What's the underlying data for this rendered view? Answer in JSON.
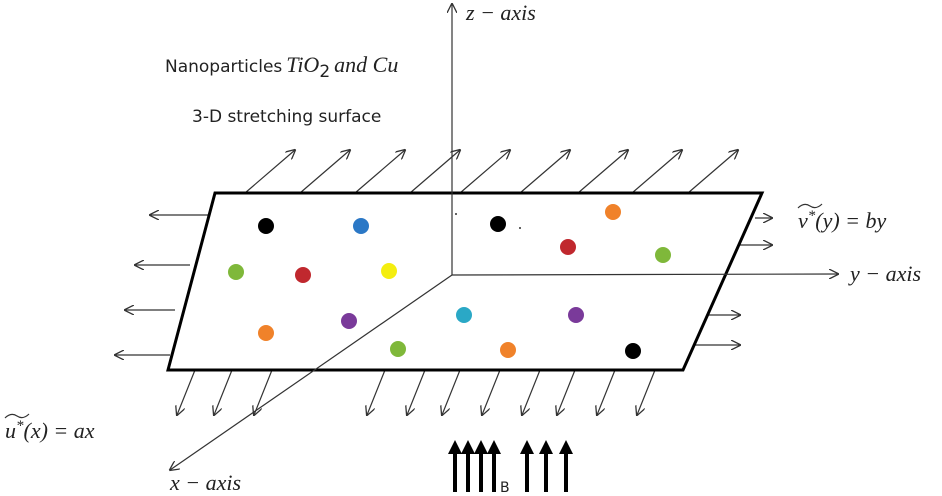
{
  "z_axis": {
    "symbol": "z",
    "minus": "−",
    "word": "axis"
  },
  "y_axis": {
    "symbol": "y",
    "minus": "−",
    "word": "axis"
  },
  "x_axis": {
    "symbol": "x",
    "minus": "−",
    "word": "axis"
  },
  "nanoparticles": {
    "prefix": "Nanoparticles",
    "formula": "TiO",
    "subscript": "2",
    "suffix": "and Cu"
  },
  "surface_label": "3-D stretching surface",
  "v_velocity": {
    "symbol": "v",
    "superscript": "*",
    "rest": "(y) = by"
  },
  "u_velocity": {
    "symbol": "u",
    "superscript": "*",
    "rest": "(x) = ax"
  },
  "field_label": "B"
}
